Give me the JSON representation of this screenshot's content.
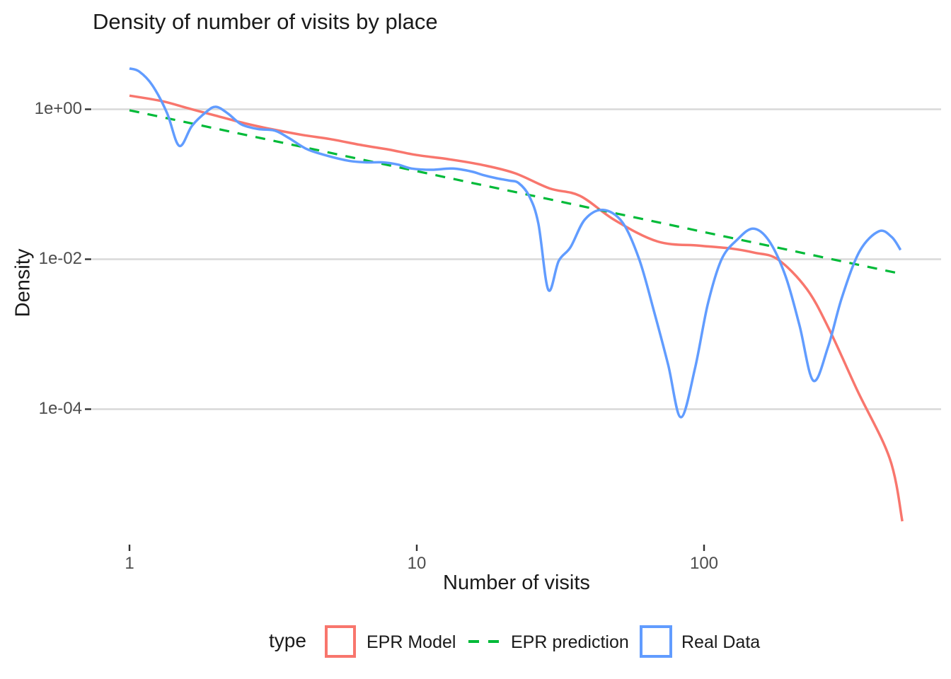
{
  "title": "Density of number of visits by place",
  "chart_data": {
    "type": "line",
    "title": "Density of number of visits by place",
    "xlabel": "Number of visits",
    "ylabel": "Density",
    "x_scale": "log10",
    "y_scale": "log10",
    "xlim": [
      0.74,
      680
    ],
    "ylim": [
      3e-06,
      6
    ],
    "grid": "major-horizontal-only",
    "grid_color": "#d9d9d9",
    "tick_color": "#333333",
    "tick_label_color": "#4d4d4d",
    "x_ticks": [
      {
        "value": 1,
        "label": "1"
      },
      {
        "value": 10,
        "label": "10"
      },
      {
        "value": 100,
        "label": "100"
      }
    ],
    "y_ticks": [
      {
        "value": 1,
        "label": "1e+00"
      },
      {
        "value": 0.01,
        "label": "1e-02"
      },
      {
        "value": 0.0001,
        "label": "1e-04"
      }
    ],
    "legend_position": "bottom",
    "legend_title": "type",
    "series": [
      {
        "name": "EPR Model",
        "color": "#F8766D",
        "style": "solid",
        "legend_key": "box",
        "points": [
          [
            1,
            1.52
          ],
          [
            1.3,
            1.28
          ],
          [
            1.6,
            1.03
          ],
          [
            2.0,
            0.82
          ],
          [
            2.5,
            0.655
          ],
          [
            3.0,
            0.56
          ],
          [
            4.0,
            0.455
          ],
          [
            5.0,
            0.4
          ],
          [
            6.5,
            0.33
          ],
          [
            8.0,
            0.29
          ],
          [
            10.0,
            0.245
          ],
          [
            13.0,
            0.215
          ],
          [
            17.0,
            0.18
          ],
          [
            22.0,
            0.14
          ],
          [
            29.0,
            0.088
          ],
          [
            37.0,
            0.07
          ],
          [
            49.0,
            0.033
          ],
          [
            69.0,
            0.0172
          ],
          [
            96.0,
            0.0152
          ],
          [
            124.0,
            0.0139
          ],
          [
            150.0,
            0.0122
          ],
          [
            181.0,
            0.0099
          ],
          [
            228.0,
            0.004
          ],
          [
            273.0,
            0.00115
          ],
          [
            341.0,
            0.00018
          ],
          [
            443.0,
            2.2e-05
          ],
          [
            490.0,
            3.2e-06
          ]
        ]
      },
      {
        "name": "EPR prediction",
        "color": "#00BA38",
        "style": "dashed",
        "legend_key": "dash",
        "points": [
          [
            1,
            0.97
          ],
          [
            483,
            0.0064
          ]
        ]
      },
      {
        "name": "Real Data",
        "color": "#619CFF",
        "style": "solid",
        "legend_key": "box",
        "points": [
          [
            1.0,
            3.5
          ],
          [
            1.08,
            3.2
          ],
          [
            1.2,
            2.1
          ],
          [
            1.35,
            0.9
          ],
          [
            1.49,
            0.325
          ],
          [
            1.65,
            0.6
          ],
          [
            1.85,
            0.92
          ],
          [
            2.0,
            1.08
          ],
          [
            2.2,
            0.88
          ],
          [
            2.45,
            0.63
          ],
          [
            2.8,
            0.545
          ],
          [
            3.2,
            0.52
          ],
          [
            3.6,
            0.41
          ],
          [
            4.1,
            0.3
          ],
          [
            4.7,
            0.25
          ],
          [
            5.7,
            0.208
          ],
          [
            6.6,
            0.196
          ],
          [
            7.6,
            0.196
          ],
          [
            8.6,
            0.183
          ],
          [
            9.6,
            0.162
          ],
          [
            11.3,
            0.156
          ],
          [
            13.3,
            0.162
          ],
          [
            15.5,
            0.148
          ],
          [
            17.0,
            0.133
          ],
          [
            19.0,
            0.12
          ],
          [
            21.0,
            0.112
          ],
          [
            22.6,
            0.104
          ],
          [
            24.6,
            0.07
          ],
          [
            26.5,
            0.03
          ],
          [
            28.7,
            0.0039
          ],
          [
            31.2,
            0.0095
          ],
          [
            34.3,
            0.0145
          ],
          [
            38.5,
            0.034
          ],
          [
            44.5,
            0.0455
          ],
          [
            52.0,
            0.031
          ],
          [
            59.5,
            0.0099
          ],
          [
            67.0,
            0.002
          ],
          [
            75.0,
            0.00039
          ],
          [
            83.0,
            7.8e-05
          ],
          [
            93.0,
            0.00035
          ],
          [
            103.0,
            0.0025
          ],
          [
            115.0,
            0.0099
          ],
          [
            130.0,
            0.018
          ],
          [
            148.0,
            0.0256
          ],
          [
            168.0,
            0.0178
          ],
          [
            192.0,
            0.006
          ],
          [
            215.0,
            0.0013
          ],
          [
            240.0,
            0.00024
          ],
          [
            270.0,
            0.00067
          ],
          [
            302.0,
            0.0031
          ],
          [
            348.0,
            0.0128
          ],
          [
            406.0,
            0.0236
          ],
          [
            450.0,
            0.0198
          ],
          [
            483.0,
            0.0133
          ]
        ]
      }
    ]
  }
}
